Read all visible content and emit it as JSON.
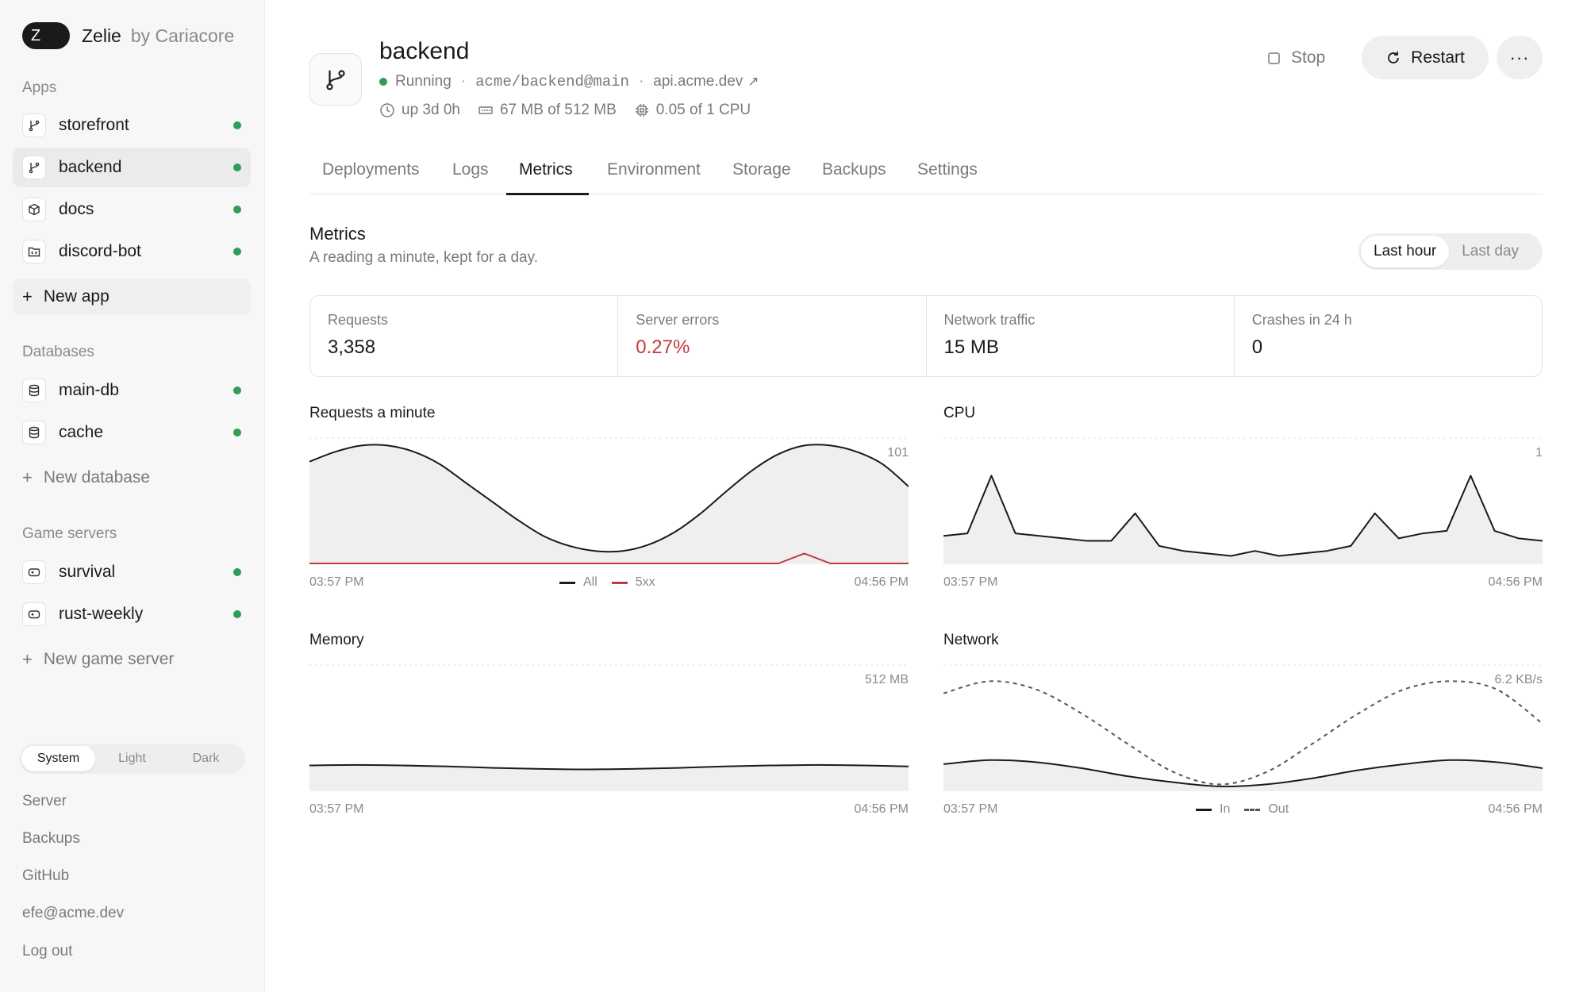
{
  "brand": {
    "badge": "Z",
    "name": "Zelie",
    "by": "by Cariacore"
  },
  "sidebar": {
    "apps_label": "Apps",
    "apps": [
      {
        "label": "storefront",
        "icon": "git-branch-icon",
        "status_color": "#2f9e55"
      },
      {
        "label": "backend",
        "icon": "git-branch-icon",
        "status_color": "#2f9e55"
      },
      {
        "label": "docs",
        "icon": "box-icon",
        "status_color": "#2f9e55"
      },
      {
        "label": "discord-bot",
        "icon": "folder-code-icon",
        "status_color": "#2f9e55"
      }
    ],
    "new_app": "New app",
    "databases_label": "Databases",
    "databases": [
      {
        "label": "main-db",
        "icon": "database-icon",
        "status_color": "#2f9e55"
      },
      {
        "label": "cache",
        "icon": "database-icon",
        "status_color": "#2f9e55"
      }
    ],
    "new_database": "New database",
    "game_servers_label": "Game servers",
    "game_servers": [
      {
        "label": "survival",
        "icon": "gamepad-icon",
        "status_color": "#2f9e55"
      },
      {
        "label": "rust-weekly",
        "icon": "gamepad-icon",
        "status_color": "#2f9e55"
      }
    ],
    "new_game_server": "New game server",
    "theme": {
      "options": [
        "System",
        "Light",
        "Dark"
      ],
      "selected": "System"
    },
    "footer_links": [
      "Server",
      "Backups",
      "GitHub",
      "efe@acme.dev",
      "Log out"
    ]
  },
  "header": {
    "title": "backend",
    "status": "Running",
    "repo": "acme/backend@main",
    "domain": "api.acme.dev",
    "domain_icon": "external-link-icon",
    "uptime": "up 3d 0h",
    "memory": "67 MB of 512 MB",
    "cpu": "0.05 of 1 CPU",
    "stop_label": "Stop",
    "restart_label": "Restart",
    "more_label": "···"
  },
  "tabs": [
    {
      "label": "Deployments",
      "active": false
    },
    {
      "label": "Logs",
      "active": false
    },
    {
      "label": "Metrics",
      "active": true
    },
    {
      "label": "Environment",
      "active": false
    },
    {
      "label": "Storage",
      "active": false
    },
    {
      "label": "Backups",
      "active": false
    },
    {
      "label": "Settings",
      "active": false
    }
  ],
  "metrics": {
    "title": "Metrics",
    "subtitle": "A reading a minute, kept for a day.",
    "range_options": [
      "Last hour",
      "Last day"
    ],
    "range_selected": "Last hour"
  },
  "stats": [
    {
      "label": "Requests",
      "value": "3,358"
    },
    {
      "label": "Server errors",
      "value": "0.27%",
      "error": true
    },
    {
      "label": "Network traffic",
      "value": "15 MB"
    },
    {
      "label": "Crashes in 24 h",
      "value": "0"
    }
  ],
  "colors": {
    "status_green": "#2f9e55",
    "error_red": "#c23b3b",
    "series_dark": "#1a1a1a"
  },
  "chart_data": [
    {
      "type": "area",
      "title": "Requests a minute",
      "max_label": "101",
      "start_label": "03:57 PM",
      "end_label": "04:56 PM",
      "ylim": [
        0,
        101
      ],
      "legend": [
        "All",
        "5xx"
      ],
      "series": [
        {
          "name": "All",
          "color": "#1a1a1a",
          "values": [
            82,
            90,
            95,
            95,
            90,
            80,
            65,
            50,
            35,
            22,
            14,
            10,
            10,
            15,
            25,
            40,
            58,
            75,
            88,
            95,
            95,
            90,
            80,
            62
          ]
        },
        {
          "name": "5xx",
          "color": "#c23b3b",
          "values": [
            0,
            0,
            0,
            0,
            0,
            0,
            0,
            0,
            0,
            0,
            0,
            0,
            0,
            0,
            0,
            0,
            0,
            0,
            0,
            8,
            0,
            0,
            0,
            0
          ]
        }
      ]
    },
    {
      "type": "area",
      "title": "CPU",
      "max_label": "1",
      "start_label": "03:57 PM",
      "end_label": "04:56 PM",
      "ylim": [
        0,
        1
      ],
      "series": [
        {
          "name": "CPU",
          "color": "#1a1a1a",
          "values": [
            0.22,
            0.24,
            0.7,
            0.24,
            0.22,
            0.2,
            0.18,
            0.18,
            0.4,
            0.14,
            0.1,
            0.08,
            0.06,
            0.1,
            0.06,
            0.08,
            0.1,
            0.14,
            0.4,
            0.2,
            0.24,
            0.26,
            0.7,
            0.26,
            0.2,
            0.18
          ]
        }
      ]
    },
    {
      "type": "area",
      "title": "Memory",
      "max_label": "512 MB",
      "start_label": "03:57 PM",
      "end_label": "04:56 PM",
      "ylim": [
        0,
        512
      ],
      "series": [
        {
          "name": "Memory",
          "color": "#1a1a1a",
          "values": [
            102,
            104,
            102,
            98,
            92,
            88,
            86,
            88,
            92,
            98,
            102,
            104,
            102,
            98
          ]
        }
      ]
    },
    {
      "type": "area",
      "title": "Network",
      "max_label": "6.2 KB/s",
      "start_label": "03:57 PM",
      "end_label": "04:56 PM",
      "ylim": [
        0,
        6.2
      ],
      "legend": [
        "In",
        "Out"
      ],
      "series": [
        {
          "name": "In",
          "color": "#1a1a1a",
          "values": [
            1.3,
            1.5,
            1.4,
            1.1,
            0.7,
            0.4,
            0.2,
            0.3,
            0.6,
            1.0,
            1.3,
            1.5,
            1.4,
            1.1
          ]
        },
        {
          "name": "Out",
          "color": "#555555",
          "dashed": true,
          "values": [
            4.8,
            5.4,
            5.0,
            3.8,
            2.3,
            0.9,
            0.3,
            0.9,
            2.3,
            3.8,
            5.0,
            5.4,
            5.0,
            3.3
          ]
        }
      ]
    }
  ]
}
